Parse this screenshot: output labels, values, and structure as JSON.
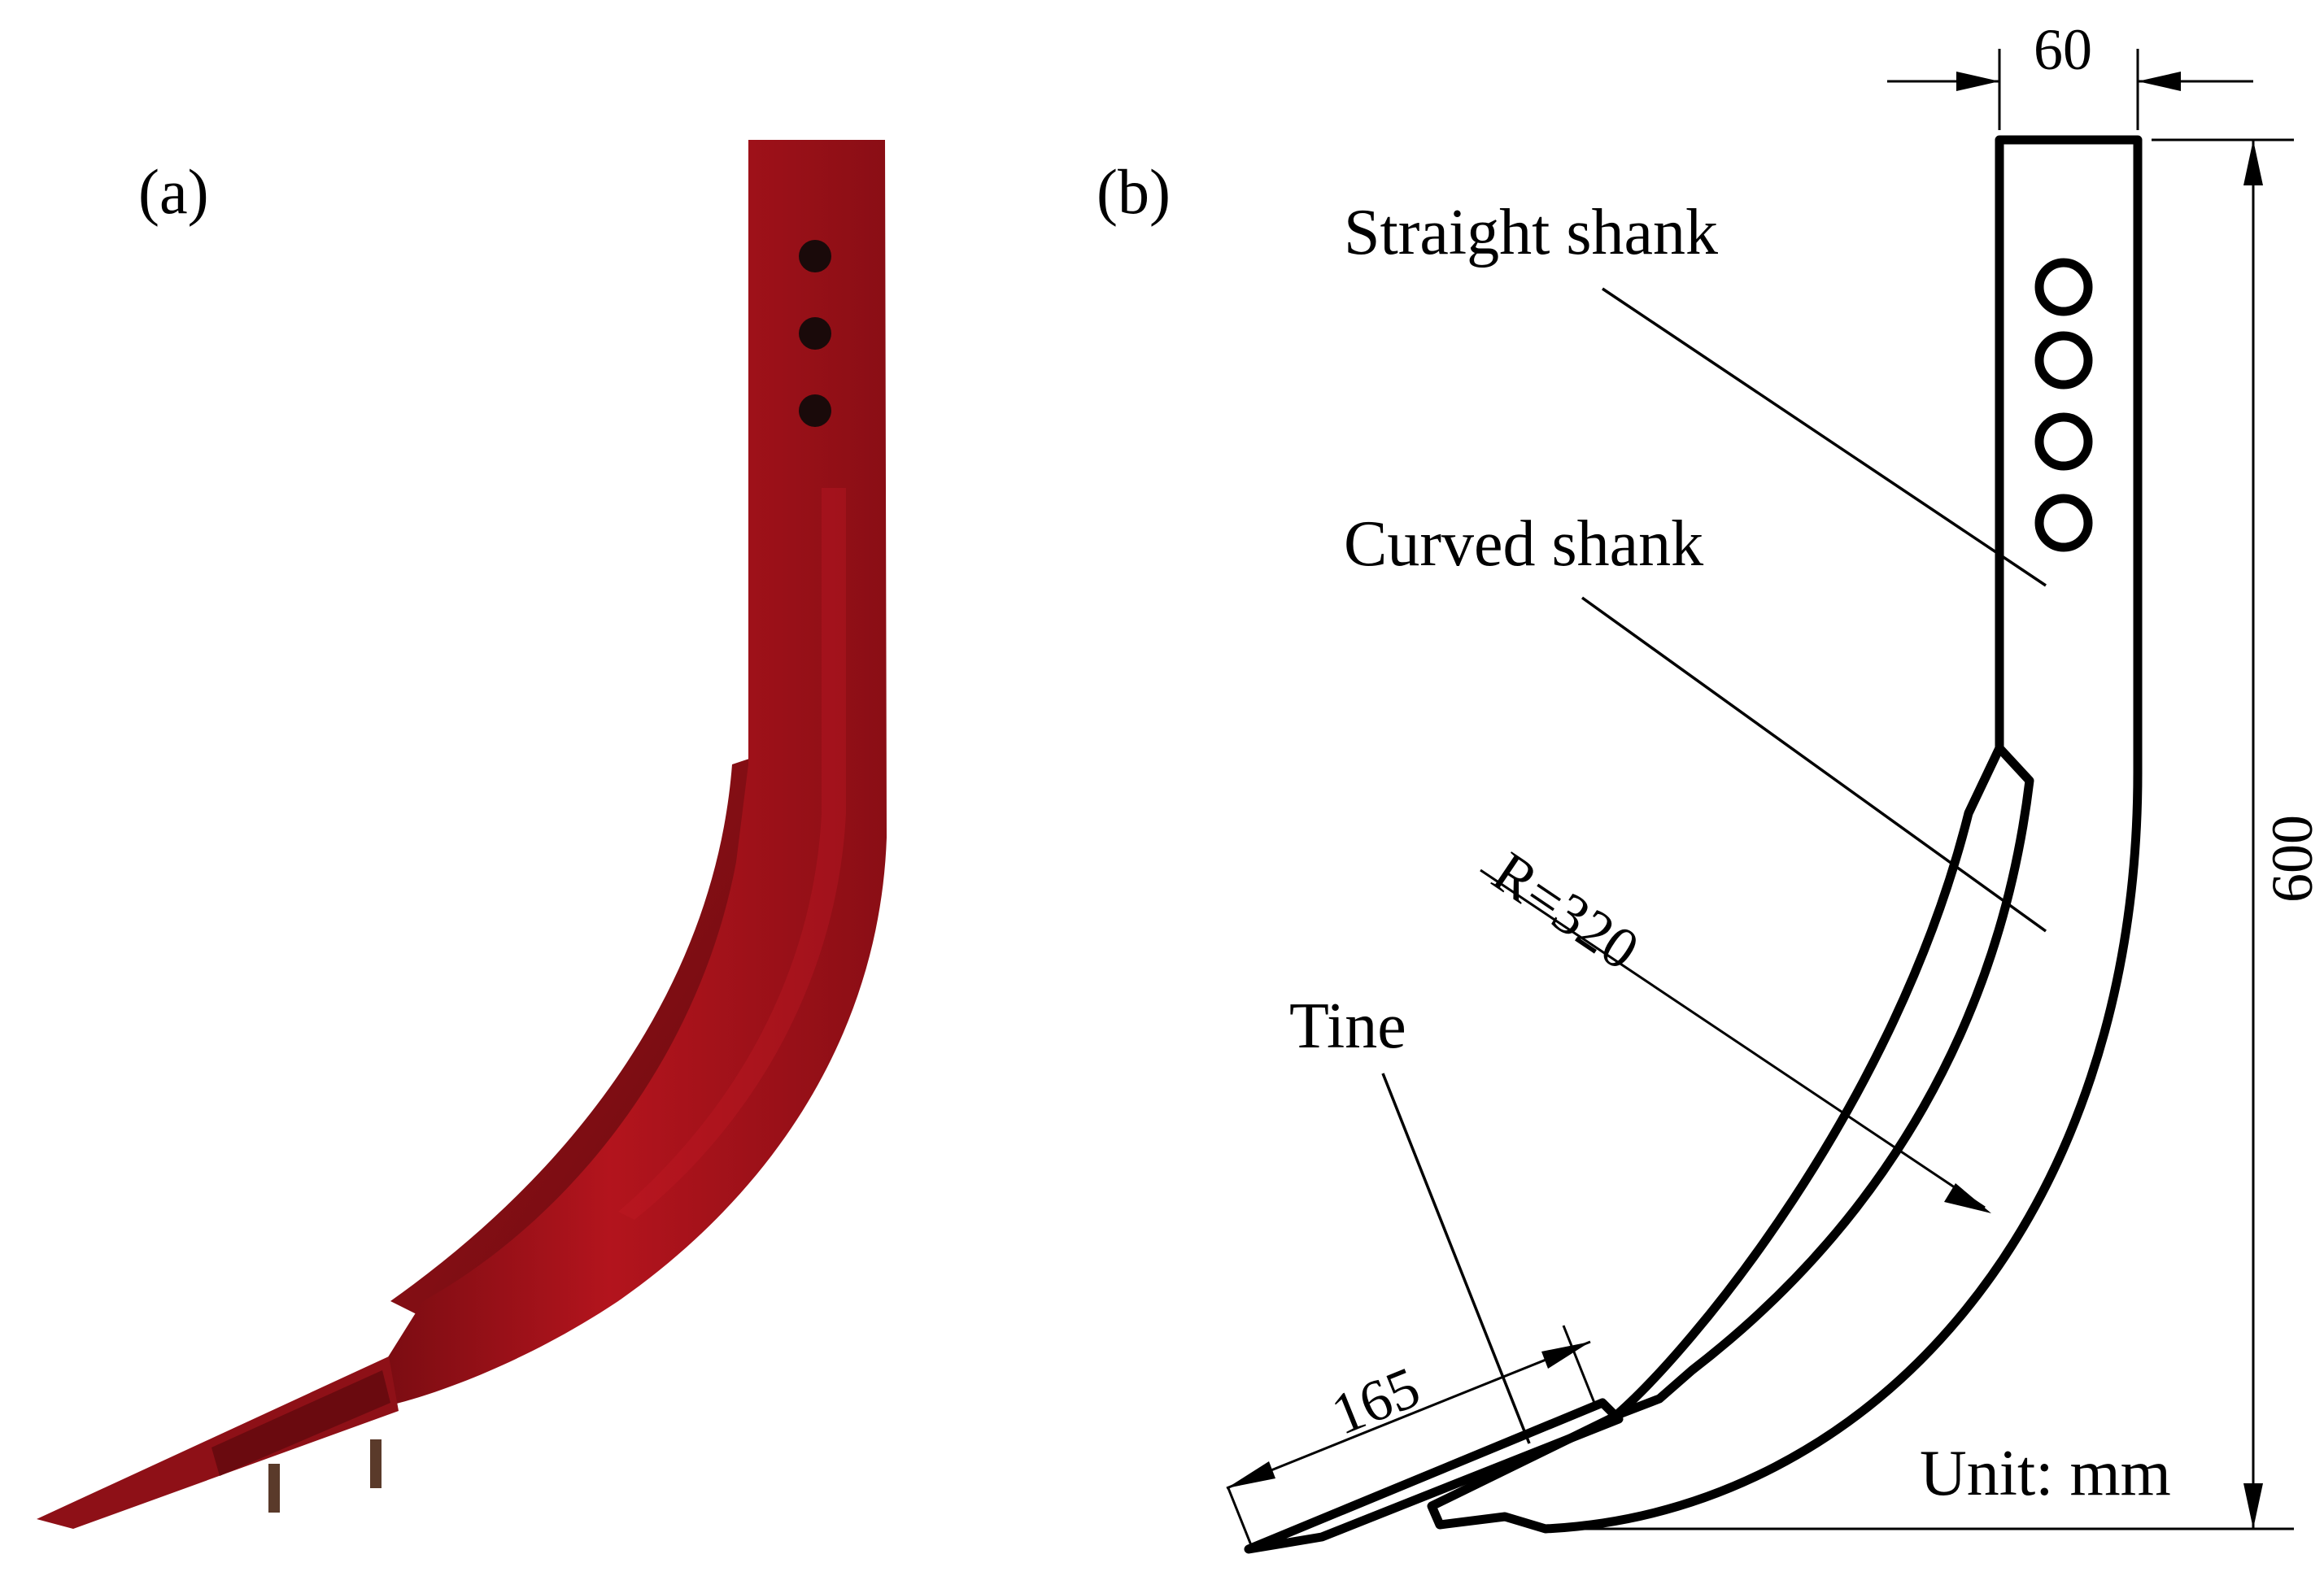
{
  "panels": {
    "a": {
      "label": "(a)"
    },
    "b": {
      "label": "(b)"
    }
  },
  "callouts": {
    "straight_shank": "Straight shank",
    "curved_shank": "Curved shank",
    "tine": "Tine"
  },
  "dimensions": {
    "width": "60",
    "height": "600",
    "radius": "R=320",
    "tine_length": "165"
  },
  "unit": "Unit: mm",
  "colors": {
    "shank_red": "#a3121a",
    "shank_dark": "#6e0b10",
    "line": "#000000"
  }
}
